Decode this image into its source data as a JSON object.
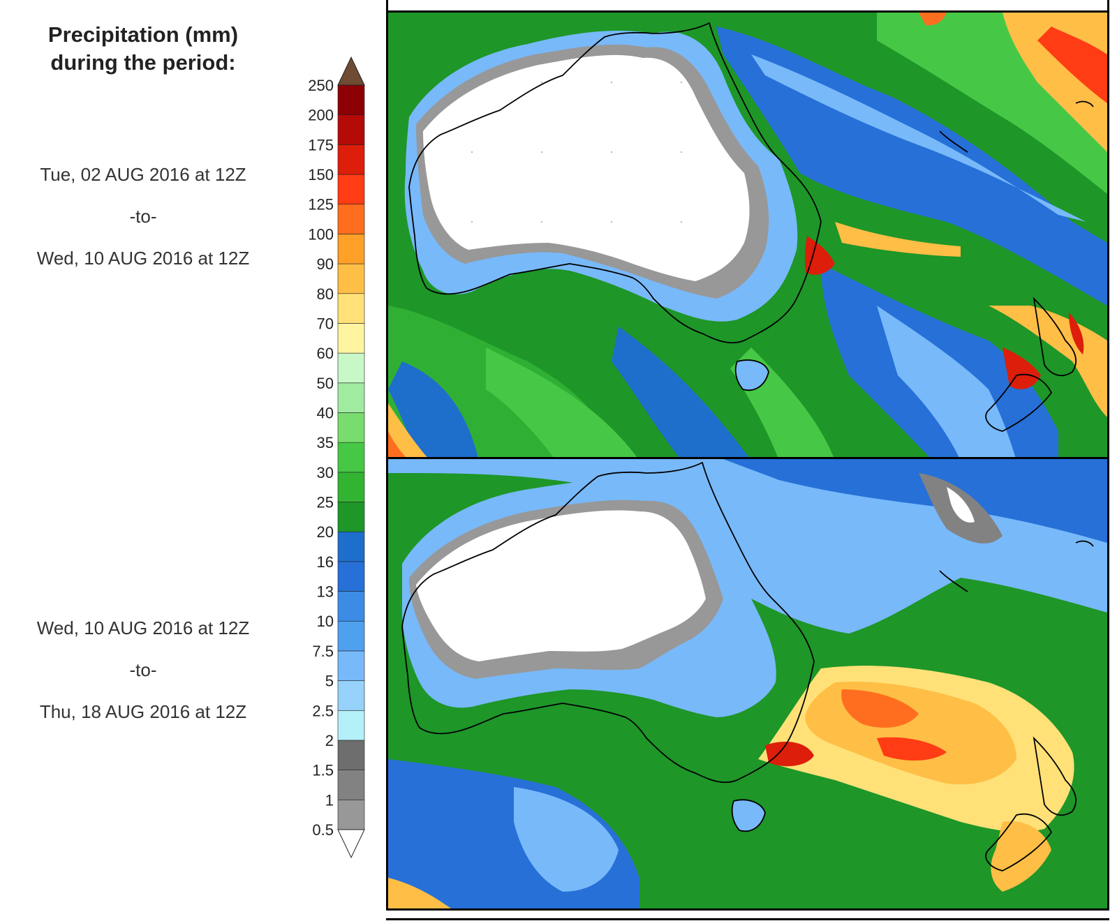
{
  "legend": {
    "title_line1": "Precipitation (mm)",
    "title_line2": "during the period:",
    "levels": [
      "0.5",
      "1",
      "1.5",
      "2",
      "2.5",
      "5",
      "7.5",
      "10",
      "13",
      "16",
      "20",
      "25",
      "30",
      "35",
      "40",
      "50",
      "60",
      "70",
      "80",
      "90",
      "100",
      "125",
      "150",
      "175",
      "200",
      "250"
    ],
    "bin_colors": [
      "#c8c8c8",
      "#b0b0b0",
      "#989898",
      "#828282",
      "#6e6e6e",
      "#b4f0fa",
      "#96d2fa",
      "#78b9fa",
      "#50a0f0",
      "#3c8ce6",
      "#2670d8",
      "#1e6ecc",
      "#1e9628",
      "#32b432",
      "#46c846",
      "#78dc6e",
      "#a0eba0",
      "#c8f7c8",
      "#fff5a0",
      "#ffe178",
      "#ffbe46",
      "#ffa028",
      "#ff6e1e",
      "#ff3c14",
      "#dc1e0a",
      "#b40a08",
      "#8c0005",
      "#5a3a28"
    ],
    "over_color": "#6e4b32",
    "under_color": "#ffffff"
  },
  "periods": [
    {
      "start": "Tue, 02 AUG 2016 at 12Z",
      "sep": "-to-",
      "end": "Wed, 10 AUG 2016 at 12Z"
    },
    {
      "start": "Wed, 10 AUG 2016 at 12Z",
      "sep": "-to-",
      "end": "Thu, 18 AUG 2016 at 12Z"
    }
  ],
  "map": {
    "region": "Australia, New Zealand and surrounding oceans",
    "background_color": "#1e9628",
    "coast_color": "#000000",
    "grid_dots": true
  }
}
